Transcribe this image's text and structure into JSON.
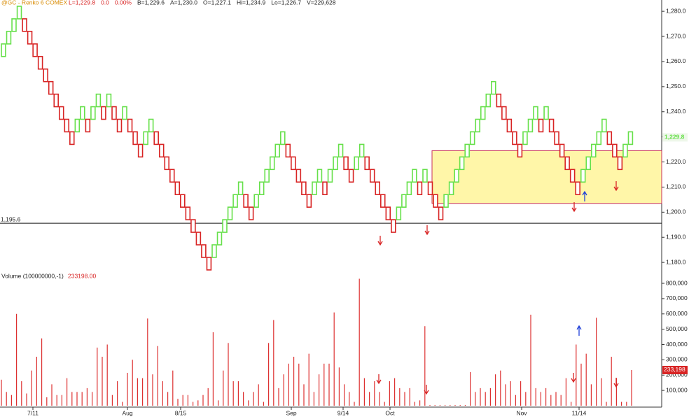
{
  "header": {
    "symbol": "@GC - Renko 6  COMEX",
    "items": [
      "L=1,229.8",
      "0.0",
      "0.00%",
      "B=1,229.6",
      "A=1,230.0",
      "O=1,227.1",
      "Hi=1,234.9",
      "Lo=1,226.7",
      "V=229,628"
    ]
  },
  "chart_data": [
    {
      "type": "renko",
      "up_color": "#66e04a",
      "down_color": "#d82424",
      "open": [
        1262,
        1267,
        1272,
        1277,
        1277,
        1272,
        1267,
        1262,
        1257,
        1252,
        1247,
        1242,
        1237,
        1232,
        1232,
        1237,
        1237,
        1237,
        1242,
        1242,
        1242,
        1242,
        1237,
        1237,
        1237,
        1232,
        1227,
        1227,
        1232,
        1232,
        1227,
        1222,
        1217,
        1212,
        1207,
        1202,
        1197,
        1192,
        1187,
        1182,
        1182,
        1187,
        1192,
        1197,
        1202,
        1207,
        1207,
        1202,
        1202,
        1207,
        1212,
        1217,
        1222,
        1227,
        1227,
        1222,
        1217,
        1212,
        1207,
        1207,
        1212,
        1212,
        1212,
        1217,
        1222,
        1222,
        1217,
        1217,
        1222,
        1222,
        1217,
        1212,
        1207,
        1202,
        1197,
        1197,
        1202,
        1207,
        1212,
        1212,
        1212,
        1212,
        1207,
        1202,
        1202,
        1207,
        1212,
        1217,
        1222,
        1227,
        1232,
        1237,
        1242,
        1247,
        1247,
        1242,
        1237,
        1232,
        1227,
        1227,
        1232,
        1237,
        1237,
        1237,
        1237,
        1232,
        1227,
        1222,
        1217,
        1212,
        1212,
        1217,
        1222,
        1227,
        1232,
        1232,
        1227,
        1222,
        1222,
        1227
      ],
      "close": [
        1267,
        1272,
        1277,
        1282,
        1272,
        1267,
        1262,
        1257,
        1252,
        1247,
        1242,
        1237,
        1232,
        1227,
        1237,
        1242,
        1232,
        1242,
        1247,
        1237,
        1247,
        1237,
        1232,
        1242,
        1232,
        1227,
        1222,
        1232,
        1237,
        1227,
        1222,
        1217,
        1212,
        1207,
        1202,
        1197,
        1192,
        1187,
        1182,
        1177,
        1187,
        1192,
        1197,
        1202,
        1207,
        1212,
        1202,
        1197,
        1207,
        1212,
        1217,
        1222,
        1227,
        1232,
        1222,
        1217,
        1212,
        1207,
        1202,
        1212,
        1217,
        1207,
        1217,
        1222,
        1227,
        1217,
        1212,
        1222,
        1227,
        1217,
        1212,
        1207,
        1202,
        1197,
        1192,
        1202,
        1207,
        1212,
        1217,
        1207,
        1217,
        1207,
        1202,
        1197,
        1207,
        1212,
        1217,
        1222,
        1227,
        1232,
        1237,
        1242,
        1247,
        1252,
        1242,
        1237,
        1232,
        1227,
        1222,
        1232,
        1237,
        1242,
        1232,
        1242,
        1232,
        1227,
        1222,
        1217,
        1212,
        1207,
        1217,
        1222,
        1227,
        1232,
        1237,
        1227,
        1222,
        1217,
        1227,
        1232
      ],
      "ylim": [
        1175.3,
        1284.5
      ],
      "yticks": [
        {
          "value": 1180,
          "label": "1,180.0"
        },
        {
          "value": 1190,
          "label": "1,190.0"
        },
        {
          "value": 1200,
          "label": "1,200.0"
        },
        {
          "value": 1210,
          "label": "1,210.0"
        },
        {
          "value": 1220,
          "label": "1,220.0"
        },
        {
          "value": 1230,
          "label": "1,230.0"
        },
        {
          "value": 1240,
          "label": "1,240.0"
        },
        {
          "value": 1250,
          "label": "1,250.0"
        },
        {
          "value": 1260,
          "label": "1,260.0"
        },
        {
          "value": 1270,
          "label": "1,270.0"
        },
        {
          "value": 1280,
          "label": "1,280.0"
        }
      ],
      "reference_line": {
        "value": 1195.6,
        "label": "1,195.6"
      },
      "last_price": {
        "value": 1229.8,
        "label": "1,229.8"
      },
      "zone": {
        "low": 1203.5,
        "high": 1224.5,
        "color": "#fff6a8",
        "border": "#c8305a"
      }
    },
    {
      "type": "bar",
      "title": "Volume (100000000,-1)",
      "last_value_text": "233198.00",
      "color": "#dd3030",
      "values": [
        170000,
        90000,
        70000,
        600000,
        160000,
        80000,
        230000,
        320000,
        440000,
        55000,
        140000,
        70000,
        70000,
        180000,
        90000,
        90000,
        90000,
        115000,
        90000,
        380000,
        320000,
        400000,
        70000,
        160000,
        25000,
        215000,
        300000,
        180000,
        180000,
        570000,
        205000,
        390000,
        160000,
        90000,
        230000,
        45000,
        70000,
        70000,
        25000,
        35000,
        70000,
        115000,
        480000,
        35000,
        230000,
        410000,
        160000,
        160000,
        90000,
        35000,
        90000,
        140000,
        25000,
        410000,
        560000,
        115000,
        205000,
        275000,
        320000,
        275000,
        140000,
        340000,
        90000,
        205000,
        275000,
        275000,
        610000,
        250000,
        140000,
        90000,
        25000,
        830000,
        180000,
        90000,
        160000,
        90000,
        25000,
        160000,
        180000,
        115000,
        90000,
        115000,
        25000,
        35000,
        520000,
        5000,
        5000,
        5000,
        5000,
        5000,
        5000,
        5000,
        5000,
        220000,
        90000,
        115000,
        90000,
        115000,
        205000,
        230000,
        140000,
        160000,
        70000,
        160000,
        90000,
        595000,
        115000,
        90000,
        115000,
        70000,
        90000,
        70000,
        180000,
        25000,
        400000,
        275000,
        340000,
        140000,
        575000,
        180000,
        25000,
        320000,
        180000,
        25000,
        25000,
        233198
      ],
      "last_label": {
        "value": 233198,
        "label": "233,198"
      },
      "ylim": [
        0,
        823000
      ],
      "yticks": [
        {
          "value": 100000,
          "label": "100,000"
        },
        {
          "value": 200000,
          "label": "200,000"
        },
        {
          "value": 300000,
          "label": "300,000"
        },
        {
          "value": 400000,
          "label": "400,000"
        },
        {
          "value": 500000,
          "label": "500,000"
        },
        {
          "value": 600000,
          "label": "600,000"
        },
        {
          "value": 700000,
          "label": "700,000"
        },
        {
          "value": 800000,
          "label": "800,000"
        }
      ],
      "x_labels": [
        "7/11",
        "Aug",
        "8/15",
        "Sep",
        "9/14",
        "Oct",
        "Nov",
        "11/14"
      ]
    }
  ]
}
